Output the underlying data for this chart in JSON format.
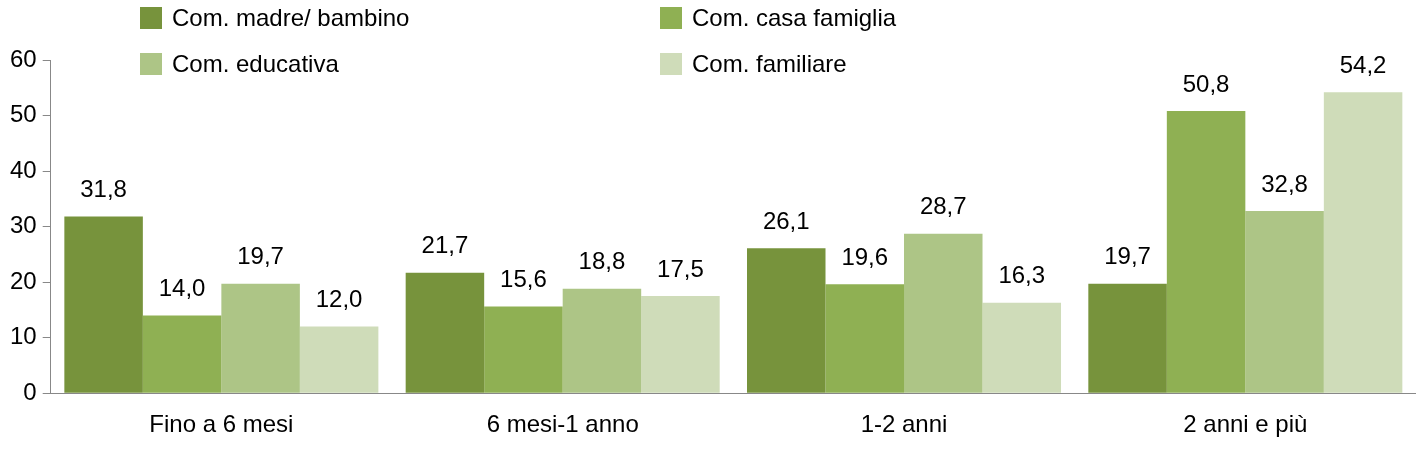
{
  "chart_data": {
    "type": "bar",
    "categories": [
      "Fino a 6 mesi",
      "6 mesi-1 anno",
      "1-2 anni",
      "2 anni e più"
    ],
    "series": [
      {
        "name": "Com. madre/ bambino",
        "color": "#77933c",
        "values": [
          31.8,
          21.7,
          26.1,
          19.7
        ],
        "value_labels": [
          "31,8",
          "21,7",
          "26,1",
          "19,7"
        ]
      },
      {
        "name": "Com. casa famiglia",
        "color": "#8fb053",
        "values": [
          14.0,
          15.6,
          19.6,
          50.8
        ],
        "value_labels": [
          "14,0",
          "15,6",
          "19,6",
          "50,8"
        ]
      },
      {
        "name": "Com. educativa",
        "color": "#adc586",
        "values": [
          19.7,
          18.8,
          28.7,
          32.8
        ],
        "value_labels": [
          "19,7",
          "18,8",
          "28,7",
          "32,8"
        ]
      },
      {
        "name": "Com. familiare",
        "color": "#cfdcb9",
        "values": [
          12.0,
          17.5,
          16.3,
          54.2
        ],
        "value_labels": [
          "12,0",
          "17,5",
          "16,3",
          "54,2"
        ]
      }
    ],
    "ylim": [
      0,
      60
    ],
    "yticks": [
      0,
      10,
      20,
      30,
      40,
      50,
      60
    ],
    "grid": false,
    "legend": "top"
  }
}
